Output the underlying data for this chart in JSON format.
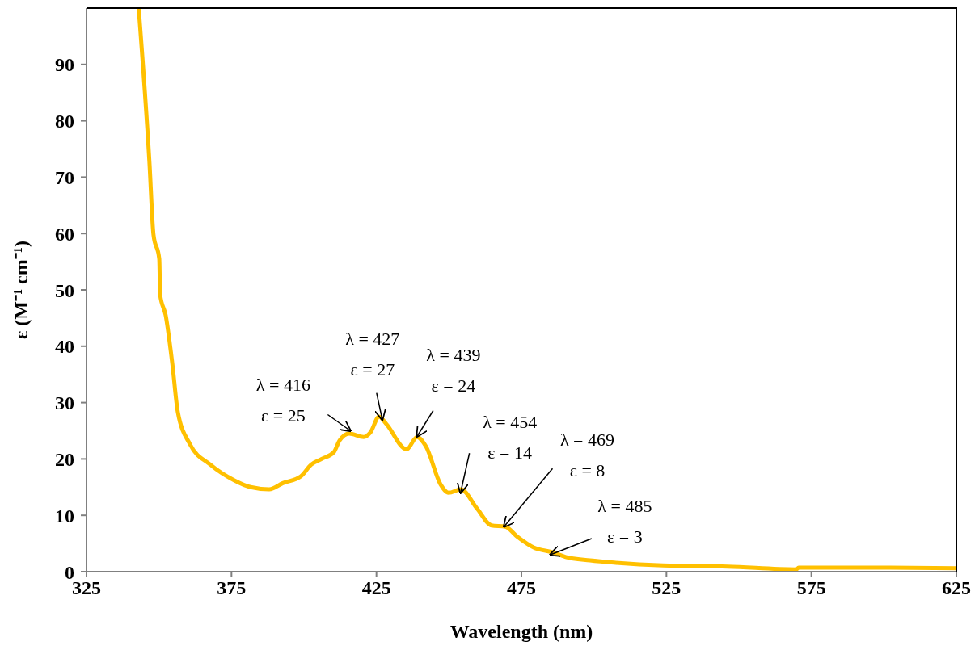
{
  "chart_data": {
    "type": "line",
    "xlabel": "Wavelength (nm)",
    "ylabel": "ε (M⁻¹ cm⁻¹)",
    "xlim": [
      325,
      625
    ],
    "xticks": [
      325,
      375,
      425,
      475,
      525,
      575,
      625
    ],
    "ylim": [
      0,
      100
    ],
    "yticks": [
      0,
      10,
      20,
      30,
      40,
      50,
      60,
      70,
      80,
      90
    ],
    "grid": false,
    "legend": false,
    "marker": "none",
    "line_style": "solid",
    "series": [
      {
        "color": "#ffc000",
        "x": [
          343,
          346.7,
          348.1,
          350.1,
          350.4,
          352.3,
          354.6,
          356.5,
          360.7,
          367.7,
          376,
          381.6,
          388,
          392.7,
          398.9,
          402.5,
          406.1,
          410.3,
          412.3,
          415.6,
          420.6,
          422.9,
          425.9,
          428.4,
          435.4,
          439,
          442.1,
          447.1,
          449.9,
          454.1,
          459.7,
          464.7,
          469.4,
          473.6,
          479.2,
          486.1,
          490.3,
          498.7,
          507,
          523.8,
          546.1,
          569.8,
          570.6,
          601.8,
          625
        ],
        "values": [
          100,
          72.7,
          59.8,
          55.5,
          49.1,
          45.5,
          36.9,
          28.3,
          22.6,
          19,
          16.2,
          15,
          14.6,
          15.7,
          16.9,
          19,
          20,
          21.2,
          23.3,
          24.5,
          23.9,
          24.7,
          27.5,
          26.2,
          21.7,
          23.9,
          22.2,
          15.5,
          14,
          14.6,
          11.2,
          8.2,
          8,
          6.2,
          4.3,
          3.4,
          2.6,
          2,
          1.6,
          1.1,
          0.9,
          0.4,
          0.7,
          0.7,
          0.6
        ]
      }
    ],
    "annotations": [
      {
        "text": "λ = 416\nε = 25",
        "x": 416,
        "y": 25
      },
      {
        "text": "λ = 427\nε = 27",
        "x": 427,
        "y": 27
      },
      {
        "text": "λ = 439\nε = 24",
        "x": 439,
        "y": 24
      },
      {
        "text": "λ = 454\nε = 14",
        "x": 454,
        "y": 14
      },
      {
        "text": "λ = 469\nε = 8",
        "x": 469,
        "y": 8
      },
      {
        "text": "λ = 485\nε = 3",
        "x": 485,
        "y": 3
      }
    ]
  }
}
